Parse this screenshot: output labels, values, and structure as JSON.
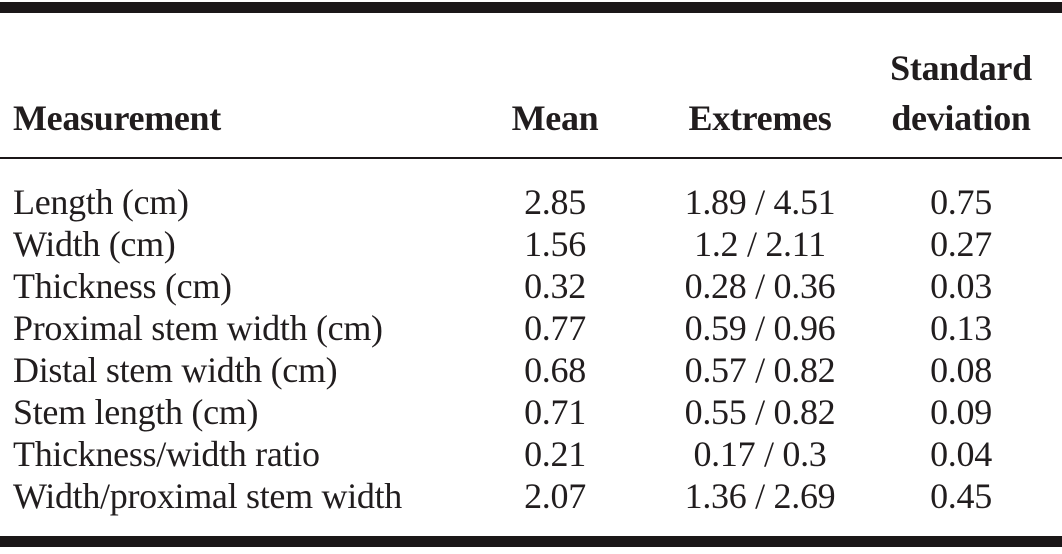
{
  "table": {
    "columns": [
      {
        "key": "measurement",
        "label": "Measurement"
      },
      {
        "key": "mean",
        "label": "Mean"
      },
      {
        "key": "extremes",
        "label": "Extremes"
      },
      {
        "key": "sd",
        "label": "Standard\ndeviation"
      }
    ],
    "rows": [
      {
        "measurement": "Length (cm)",
        "mean": "2.85",
        "extremes": "1.89 / 4.51",
        "sd": "0.75"
      },
      {
        "measurement": "Width (cm)",
        "mean": "1.56",
        "extremes": "1.2 / 2.11",
        "sd": "0.27"
      },
      {
        "measurement": "Thickness (cm)",
        "mean": "0.32",
        "extremes": "0.28 / 0.36",
        "sd": "0.03"
      },
      {
        "measurement": "Proximal stem width (cm)",
        "mean": "0.77",
        "extremes": "0.59 / 0.96",
        "sd": "0.13"
      },
      {
        "measurement": "Distal stem width (cm)",
        "mean": "0.68",
        "extremes": "0.57 / 0.82",
        "sd": "0.08"
      },
      {
        "measurement": "Stem length (cm)",
        "mean": "0.71",
        "extremes": "0.55 / 0.82",
        "sd": "0.09"
      },
      {
        "measurement": "Thickness/width ratio",
        "mean": "0.21",
        "extremes": "0.17 / 0.3",
        "sd": "0.04"
      },
      {
        "measurement": "Width/proximal stem width",
        "mean": "2.07",
        "extremes": "1.36 / 2.69",
        "sd": "0.45"
      }
    ]
  },
  "colors": {
    "text": "#211d1e",
    "rule": "#1b1718",
    "background": "#ffffff"
  }
}
